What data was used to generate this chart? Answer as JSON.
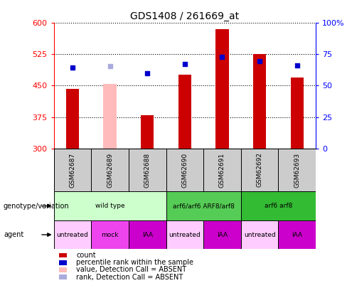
{
  "title": "GDS1408 / 261669_at",
  "samples": [
    "GSM62687",
    "GSM62689",
    "GSM62688",
    "GSM62690",
    "GSM62691",
    "GSM62692",
    "GSM62693"
  ],
  "bar_heights": [
    443,
    455,
    379,
    477,
    585,
    526,
    469
  ],
  "bar_colors": [
    "#cc0000",
    "#ffbbbb",
    "#cc0000",
    "#cc0000",
    "#cc0000",
    "#cc0000",
    "#cc0000"
  ],
  "dot_values": [
    493,
    497,
    479,
    502,
    519,
    509,
    498
  ],
  "dot_colors": [
    "#0000cc",
    "#aaaadd",
    "#0000cc",
    "#0000cc",
    "#0000cc",
    "#0000cc",
    "#0000cc"
  ],
  "y_min": 300,
  "y_max": 600,
  "y_ticks": [
    300,
    375,
    450,
    525,
    600
  ],
  "y2_ticks": [
    0,
    25,
    50,
    75,
    100
  ],
  "y2_labels": [
    "0",
    "25",
    "50",
    "75",
    "100%"
  ],
  "genotype_groups": [
    {
      "label": "wild type",
      "start": 0,
      "end": 3,
      "color": "#ccffcc"
    },
    {
      "label": "arf6/arf6 ARF8/arf8",
      "start": 3,
      "end": 5,
      "color": "#55cc55"
    },
    {
      "label": "arf6 arf8",
      "start": 5,
      "end": 7,
      "color": "#33bb33"
    }
  ],
  "agent_groups": [
    {
      "label": "untreated",
      "start": 0,
      "end": 1,
      "color": "#ffccff"
    },
    {
      "label": "mock",
      "start": 1,
      "end": 2,
      "color": "#ee44ee"
    },
    {
      "label": "IAA",
      "start": 2,
      "end": 3,
      "color": "#cc00cc"
    },
    {
      "label": "untreated",
      "start": 3,
      "end": 4,
      "color": "#ffccff"
    },
    {
      "label": "IAA",
      "start": 4,
      "end": 5,
      "color": "#cc00cc"
    },
    {
      "label": "untreated",
      "start": 5,
      "end": 6,
      "color": "#ffccff"
    },
    {
      "label": "IAA",
      "start": 6,
      "end": 7,
      "color": "#cc00cc"
    }
  ],
  "legend_items": [
    {
      "label": "count",
      "color": "#cc0000"
    },
    {
      "label": "percentile rank within the sample",
      "color": "#0000cc"
    },
    {
      "label": "value, Detection Call = ABSENT",
      "color": "#ffbbbb"
    },
    {
      "label": "rank, Detection Call = ABSENT",
      "color": "#aaaadd"
    }
  ],
  "bar_width": 0.35,
  "sample_row_color": "#cccccc",
  "fig_bg": "#ffffff"
}
